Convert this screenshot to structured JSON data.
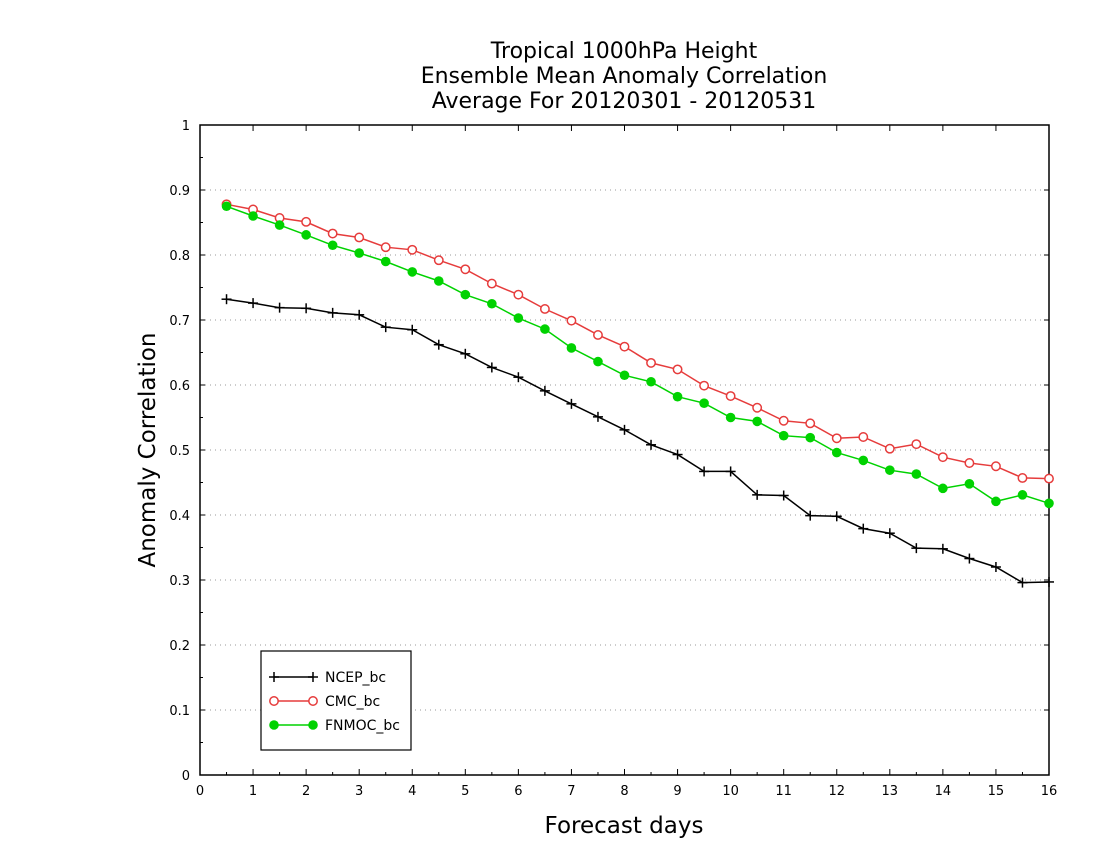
{
  "chart_data": {
    "type": "line",
    "title": [
      "Tropical 1000hPa Height",
      "Ensemble Mean Anomaly Correlation",
      "Average For 20120301 - 20120531"
    ],
    "xlabel": "Forecast days",
    "ylabel": "Anomaly Correlation",
    "xlim": [
      0,
      16
    ],
    "ylim": [
      0,
      1
    ],
    "xticks": [
      "0",
      "1",
      "2",
      "3",
      "4",
      "5",
      "6",
      "7",
      "8",
      "9",
      "10",
      "11",
      "12",
      "13",
      "14",
      "15",
      "16"
    ],
    "yticks": [
      "0",
      "0.1",
      "0.2",
      "0.3",
      "0.4",
      "0.5",
      "0.6",
      "0.7",
      "0.8",
      "0.9",
      "1"
    ],
    "grid": "horizontal dotted",
    "legend_position": "bottom-left",
    "x": [
      0.5,
      1,
      1.5,
      2,
      2.5,
      3,
      3.5,
      4,
      4.5,
      5,
      5.5,
      6,
      6.5,
      7,
      7.5,
      8,
      8.5,
      9,
      9.5,
      10,
      10.5,
      11,
      11.5,
      12,
      12.5,
      13,
      13.5,
      14,
      14.5,
      15,
      15.5,
      16
    ],
    "series": [
      {
        "name": "NCEP_bc",
        "color": "#000000",
        "marker": "plus",
        "values": [
          0.732,
          0.726,
          0.719,
          0.718,
          0.711,
          0.708,
          0.689,
          0.685,
          0.662,
          0.648,
          0.627,
          0.612,
          0.591,
          0.571,
          0.551,
          0.531,
          0.508,
          0.493,
          0.467,
          0.467,
          0.431,
          0.43,
          0.399,
          0.398,
          0.379,
          0.372,
          0.349,
          0.348,
          0.333,
          0.32,
          0.296,
          0.297
        ]
      },
      {
        "name": "CMC_bc",
        "color": "#e63c3c",
        "marker": "open-circle",
        "values": [
          0.878,
          0.87,
          0.857,
          0.851,
          0.833,
          0.827,
          0.812,
          0.808,
          0.792,
          0.778,
          0.756,
          0.739,
          0.717,
          0.699,
          0.677,
          0.659,
          0.634,
          0.624,
          0.599,
          0.583,
          0.565,
          0.545,
          0.541,
          0.518,
          0.52,
          0.502,
          0.509,
          0.489,
          0.48,
          0.475,
          0.457,
          0.456
        ]
      },
      {
        "name": "FNMOC_bc",
        "color": "#00d200",
        "marker": "filled-circle",
        "values": [
          0.875,
          0.86,
          0.846,
          0.831,
          0.815,
          0.803,
          0.79,
          0.774,
          0.76,
          0.739,
          0.725,
          0.703,
          0.686,
          0.657,
          0.636,
          0.615,
          0.605,
          0.582,
          0.572,
          0.55,
          0.544,
          0.522,
          0.519,
          0.496,
          0.484,
          0.469,
          0.463,
          0.441,
          0.448,
          0.421,
          0.431,
          0.418
        ]
      }
    ]
  }
}
